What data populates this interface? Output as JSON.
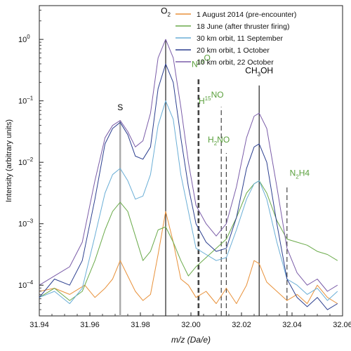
{
  "chart_data": {
    "type": "line",
    "xlabel": "m/z (Da/e)",
    "ylabel": "Intensity (arbitrary units)",
    "xlim": [
      31.94,
      32.06
    ],
    "ylim_log10": [
      -4.5,
      0.55
    ],
    "y_scale": "log",
    "x_ticks": [
      31.94,
      31.96,
      31.98,
      32.0,
      32.02,
      32.04,
      32.06
    ],
    "x_tick_labels": [
      "31.94",
      "31.96",
      "31.98",
      "32.00",
      "32.02",
      "32.04",
      "32.06"
    ],
    "y_ticks_log10": [
      -4,
      -3,
      -2,
      -1,
      0
    ],
    "grid": false,
    "legend_position": "top-right",
    "series": [
      {
        "name": "1 August 2014 (pre-encounter)",
        "color": "#e8913a",
        "points": [
          [
            31.94,
            -4.1
          ],
          [
            31.946,
            -4.05
          ],
          [
            31.952,
            -4.15
          ],
          [
            31.958,
            -4.0
          ],
          [
            31.962,
            -4.2
          ],
          [
            31.966,
            -4.05
          ],
          [
            31.969,
            -3.9
          ],
          [
            31.972,
            -3.6
          ],
          [
            31.975,
            -3.85
          ],
          [
            31.978,
            -4.1
          ],
          [
            31.981,
            -4.25
          ],
          [
            31.984,
            -4.15
          ],
          [
            31.987,
            -3.5
          ],
          [
            31.99,
            -2.8
          ],
          [
            31.993,
            -3.3
          ],
          [
            31.996,
            -3.9
          ],
          [
            31.999,
            -4.0
          ],
          [
            32.002,
            -4.2
          ],
          [
            32.006,
            -4.1
          ],
          [
            32.01,
            -4.3
          ],
          [
            32.014,
            -4.05
          ],
          [
            32.018,
            -4.3
          ],
          [
            32.022,
            -4.0
          ],
          [
            32.025,
            -3.6
          ],
          [
            32.027,
            -3.65
          ],
          [
            32.03,
            -3.95
          ],
          [
            32.034,
            -4.1
          ],
          [
            32.038,
            -4.25
          ],
          [
            32.042,
            -4.15
          ],
          [
            32.046,
            -4.3
          ],
          [
            32.05,
            -4.0
          ],
          [
            32.054,
            -4.2
          ],
          [
            32.058,
            -4.3
          ]
        ]
      },
      {
        "name": "18 June (after thruster firing)",
        "color": "#6aaa4a",
        "points": [
          [
            31.94,
            -4.2
          ],
          [
            31.946,
            -4.05
          ],
          [
            31.952,
            -4.25
          ],
          [
            31.957,
            -4.1
          ],
          [
            31.962,
            -3.6
          ],
          [
            31.966,
            -3.1
          ],
          [
            31.969,
            -2.8
          ],
          [
            31.972,
            -2.65
          ],
          [
            31.975,
            -2.8
          ],
          [
            31.978,
            -3.2
          ],
          [
            31.981,
            -3.6
          ],
          [
            31.984,
            -3.45
          ],
          [
            31.987,
            -3.1
          ],
          [
            31.99,
            -3.05
          ],
          [
            31.993,
            -3.3
          ],
          [
            31.996,
            -3.6
          ],
          [
            31.999,
            -3.85
          ],
          [
            32.002,
            -3.7
          ],
          [
            32.006,
            -3.55
          ],
          [
            32.01,
            -3.4
          ],
          [
            32.014,
            -3.25
          ],
          [
            32.018,
            -2.9
          ],
          [
            32.022,
            -2.5
          ],
          [
            32.025,
            -2.35
          ],
          [
            32.027,
            -2.3
          ],
          [
            32.03,
            -2.5
          ],
          [
            32.034,
            -2.95
          ],
          [
            32.038,
            -3.25
          ],
          [
            32.042,
            -3.3
          ],
          [
            32.046,
            -3.35
          ],
          [
            32.05,
            -3.45
          ],
          [
            32.054,
            -3.5
          ],
          [
            32.058,
            -3.6
          ]
        ]
      },
      {
        "name": "30 km orbit, 11 September",
        "color": "#6aaed6",
        "points": [
          [
            31.94,
            -4.2
          ],
          [
            31.946,
            -4.1
          ],
          [
            31.952,
            -4.3
          ],
          [
            31.957,
            -4.05
          ],
          [
            31.962,
            -3.2
          ],
          [
            31.966,
            -2.5
          ],
          [
            31.969,
            -2.2
          ],
          [
            31.972,
            -2.1
          ],
          [
            31.975,
            -2.3
          ],
          [
            31.978,
            -2.6
          ],
          [
            31.981,
            -2.55
          ],
          [
            31.984,
            -2.2
          ],
          [
            31.987,
            -1.4
          ],
          [
            31.99,
            -1.0
          ],
          [
            31.993,
            -1.3
          ],
          [
            31.996,
            -2.2
          ],
          [
            31.999,
            -2.8
          ],
          [
            32.002,
            -3.4
          ],
          [
            32.006,
            -3.5
          ],
          [
            32.01,
            -3.6
          ],
          [
            32.014,
            -3.55
          ],
          [
            32.018,
            -3.1
          ],
          [
            32.022,
            -2.6
          ],
          [
            32.025,
            -2.35
          ],
          [
            32.027,
            -2.3
          ],
          [
            32.03,
            -2.6
          ],
          [
            32.034,
            -3.3
          ],
          [
            32.038,
            -3.9
          ],
          [
            32.042,
            -4.0
          ],
          [
            32.046,
            -4.15
          ],
          [
            32.05,
            -4.05
          ],
          [
            32.054,
            -4.25
          ],
          [
            32.058,
            -4.1
          ]
        ]
      },
      {
        "name": "20 km orbit, 1 October",
        "color": "#2c3f8f",
        "points": [
          [
            31.94,
            -4.2
          ],
          [
            31.946,
            -3.9
          ],
          [
            31.952,
            -4.0
          ],
          [
            31.957,
            -3.6
          ],
          [
            31.962,
            -2.6
          ],
          [
            31.966,
            -1.7
          ],
          [
            31.969,
            -1.45
          ],
          [
            31.972,
            -1.35
          ],
          [
            31.975,
            -1.55
          ],
          [
            31.978,
            -1.9
          ],
          [
            31.981,
            -1.95
          ],
          [
            31.984,
            -1.75
          ],
          [
            31.987,
            -0.8
          ],
          [
            31.99,
            -0.4
          ],
          [
            31.993,
            -0.7
          ],
          [
            31.996,
            -1.6
          ],
          [
            31.999,
            -2.4
          ],
          [
            32.002,
            -3.0
          ],
          [
            32.006,
            -3.3
          ],
          [
            32.01,
            -3.45
          ],
          [
            32.014,
            -3.4
          ],
          [
            32.018,
            -2.9
          ],
          [
            32.022,
            -2.1
          ],
          [
            32.025,
            -1.75
          ],
          [
            32.027,
            -1.7
          ],
          [
            32.03,
            -2.0
          ],
          [
            32.034,
            -3.0
          ],
          [
            32.038,
            -3.9
          ],
          [
            32.042,
            -4.2
          ],
          [
            32.046,
            -4.35
          ],
          [
            32.05,
            -4.2
          ],
          [
            32.054,
            -4.4
          ],
          [
            32.058,
            -4.3
          ]
        ]
      },
      {
        "name": "10 km orbit, 22 October",
        "color": "#7a5ca8",
        "points": [
          [
            31.94,
            -4.0
          ],
          [
            31.946,
            -3.85
          ],
          [
            31.952,
            -3.7
          ],
          [
            31.957,
            -3.3
          ],
          [
            31.962,
            -2.3
          ],
          [
            31.966,
            -1.6
          ],
          [
            31.969,
            -1.4
          ],
          [
            31.972,
            -1.32
          ],
          [
            31.975,
            -1.5
          ],
          [
            31.978,
            -1.75
          ],
          [
            31.981,
            -1.65
          ],
          [
            31.984,
            -1.2
          ],
          [
            31.987,
            -0.3
          ],
          [
            31.99,
            0.0
          ],
          [
            31.993,
            -0.3
          ],
          [
            31.996,
            -1.1
          ],
          [
            31.999,
            -2.0
          ],
          [
            32.002,
            -2.7
          ],
          [
            32.006,
            -3.0
          ],
          [
            32.01,
            -3.2
          ],
          [
            32.014,
            -3.0
          ],
          [
            32.018,
            -2.4
          ],
          [
            32.022,
            -1.6
          ],
          [
            32.025,
            -1.25
          ],
          [
            32.027,
            -1.2
          ],
          [
            32.03,
            -1.45
          ],
          [
            32.034,
            -2.4
          ],
          [
            32.038,
            -3.4
          ],
          [
            32.042,
            -3.8
          ],
          [
            32.046,
            -4.0
          ],
          [
            32.05,
            -3.9
          ],
          [
            32.054,
            -4.1
          ],
          [
            32.058,
            -4.0
          ]
        ]
      }
    ],
    "reference_lines": [
      {
        "species": "S",
        "x": 31.972,
        "color": "#aaaaaa",
        "style": "solid",
        "top_log10": -1.32
      },
      {
        "species": "O2",
        "x": 31.99,
        "color": "#222222",
        "style": "solid",
        "top_log10": 0.0
      },
      {
        "species": "N18O",
        "x": 32.003,
        "color": "#444444",
        "style": "dashed-thick",
        "top_log10": -0.65
      },
      {
        "species": "H15NO",
        "x": 32.012,
        "color": "#444444",
        "style": "dashed",
        "top_log10": -1.1
      },
      {
        "species": "H2NO",
        "x": 32.014,
        "color": "#444444",
        "style": "dashed",
        "top_log10": -1.85
      },
      {
        "species": "CH3OH",
        "x": 32.027,
        "color": "#222222",
        "style": "solid",
        "top_log10": -0.75
      },
      {
        "species": "N2H4",
        "x": 32.038,
        "color": "#444444",
        "style": "dashed",
        "top_log10": -2.4
      }
    ],
    "annotations": [
      {
        "x": 31.972,
        "log10y": -1.15,
        "color": "#000000",
        "base": "S",
        "sup": "",
        "sub": "",
        "rest": ""
      },
      {
        "x": 31.99,
        "log10y": 0.42,
        "color": "#000000",
        "base": "O",
        "sup": "",
        "sub": "2",
        "rest": ""
      },
      {
        "x": 32.004,
        "log10y": -0.45,
        "color": "#5aa03c",
        "base": "N",
        "sup": "18",
        "sub": "",
        "rest": "O"
      },
      {
        "x": 32.008,
        "log10y": -1.05,
        "color": "#5aa03c",
        "base": "H",
        "sup": "15",
        "sub": "",
        "rest": "NO"
      },
      {
        "x": 32.011,
        "log10y": -1.68,
        "color": "#5aa03c",
        "base": "H",
        "sup": "",
        "sub": "2",
        "rest": "NO"
      },
      {
        "x": 32.027,
        "log10y": -0.55,
        "color": "#000000",
        "base": "CH",
        "sup": "",
        "sub": "3",
        "rest": "OH"
      },
      {
        "x": 32.043,
        "log10y": -2.22,
        "color": "#5aa03c",
        "base": "N",
        "sup": "",
        "sub": "2",
        "rest": "H4"
      }
    ]
  }
}
